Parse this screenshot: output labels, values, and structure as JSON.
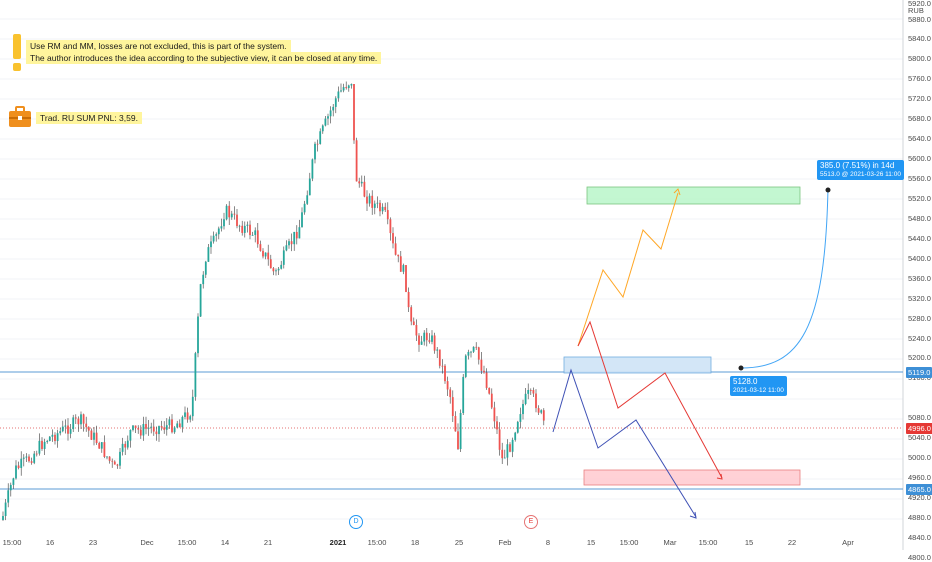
{
  "notes": {
    "disclaimer_line1": "Use RM and MM, losses are not excluded, this is part of the system.",
    "disclaimer_line2": "The author introduces the idea according to the subjective view, it can be closed at any time.",
    "pnl_text": "Trad. RU SUM PNL: 3,59."
  },
  "price_axis": {
    "currency": "RUB",
    "top_value": "5920.0",
    "ticks": [
      "5880.0",
      "5840.0",
      "5800.0",
      "5760.0",
      "5720.0",
      "5680.0",
      "5640.0",
      "5600.0",
      "5560.0",
      "5520.0",
      "5480.0",
      "5440.0",
      "5400.0",
      "5360.0",
      "5320.0",
      "5280.0",
      "5240.0",
      "5200.0",
      "5160.0",
      "5080.0",
      "5040.0",
      "5000.0",
      "4960.0",
      "4920.0",
      "4880.0",
      "4840.0",
      "4800.0"
    ],
    "tag_upper": "5119.0",
    "tag_current": "4996.0",
    "tag_lower": "4865.0"
  },
  "time_axis": {
    "labels": [
      {
        "text": "15:00",
        "bold": false
      },
      {
        "text": "16",
        "bold": false
      },
      {
        "text": "23",
        "bold": false
      },
      {
        "text": "Dec",
        "bold": false
      },
      {
        "text": "15:00",
        "bold": false
      },
      {
        "text": "14",
        "bold": false
      },
      {
        "text": "21",
        "bold": false
      },
      {
        "text": "2021",
        "bold": true
      },
      {
        "text": "15:00",
        "bold": false
      },
      {
        "text": "18",
        "bold": false
      },
      {
        "text": "25",
        "bold": false
      },
      {
        "text": "Feb",
        "bold": false
      },
      {
        "text": "8",
        "bold": false
      },
      {
        "text": "15",
        "bold": false
      },
      {
        "text": "15:00",
        "bold": false
      },
      {
        "text": "Mar",
        "bold": false
      },
      {
        "text": "15:00",
        "bold": false
      },
      {
        "text": "15",
        "bold": false
      },
      {
        "text": "22",
        "bold": false
      },
      {
        "text": "Apr",
        "bold": false
      }
    ]
  },
  "events": {
    "dividend": "D",
    "earnings": "E"
  },
  "projection": {
    "target_line1": "385.0 (7.51%) in 14d",
    "target_line2": "5513.0 @ 2021-03-26  11:00",
    "start_line1": "5128.0",
    "start_line2": "2021-03-12 11:00"
  },
  "colors": {
    "candle_up": "#26a69a",
    "candle_down": "#ef5350",
    "wick": "#333333",
    "accent_blue": "#2196f3",
    "note_yellow": "#fff59d",
    "target_zone": "#b9f6ca",
    "stop_zone": "#ffcdd2",
    "entry_zone": "#cfe4f7",
    "path_orange": "#ffa726",
    "path_red": "#e53935",
    "path_blue": "#3f51b5",
    "tag_red": "#e53935"
  }
}
